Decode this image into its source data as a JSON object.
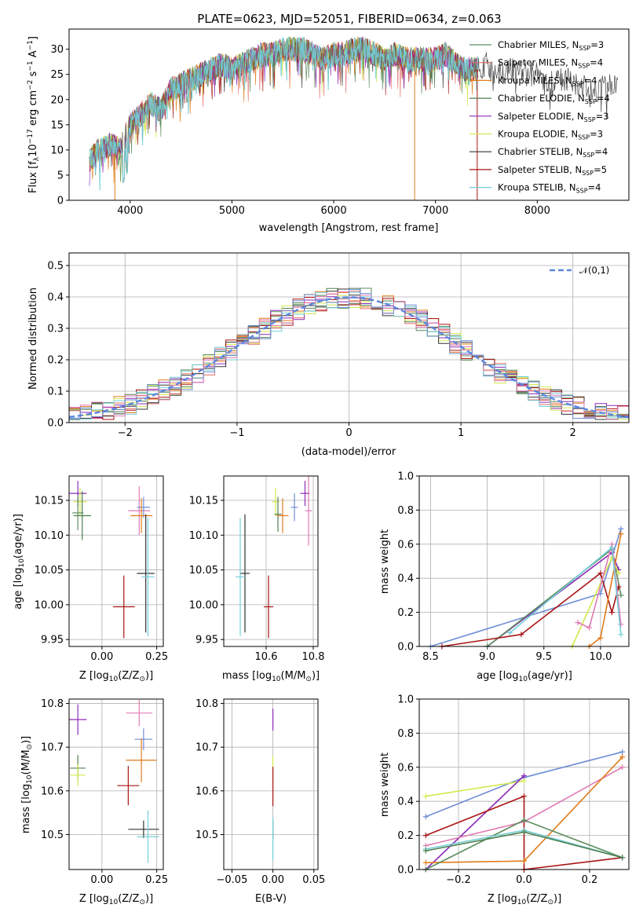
{
  "colors": {
    "chabrier_miles": "#5d8e5d",
    "salpeter_miles": "#e36f6a",
    "kroupa_miles": "#e07b1a",
    "chabrier_elodie": "#4f7f4f",
    "salpeter_elodie": "#8c2ab7",
    "kroupa_elodie": "#d3e84e",
    "chabrier_stelib": "#333333",
    "salpeter_stelib": "#a81414",
    "kroupa_stelib": "#74cfd8",
    "normal": "#5c86dc",
    "pink": "#e07ab3",
    "blue": "#6f8ed6"
  },
  "chart_data": [
    {
      "type": "line",
      "title": "PLATE=0623, MJD=52051, FIBERID=0634, z=0.063",
      "xlabel": "wavelength [Angstrom, rest frame]",
      "ylabel": "Flux [f_λ 10^-17 erg cm^-2 s^-1 A^-1]",
      "xlim": [
        3400,
        8900
      ],
      "ylim": [
        0,
        34
      ],
      "xticks": [
        "4000",
        "5000",
        "6000",
        "7000",
        "8000"
      ],
      "yticks": [
        "0",
        "5",
        "10",
        "15",
        "20",
        "25",
        "30"
      ],
      "legend_position": "top-right",
      "legend": [
        "Chabrier MILES, N_SSP=3",
        "Salpeter MILES, N_SSP=4",
        "Kroupa MILES, N_SSP=4",
        "Chabrier ELODIE, N_SSP=4",
        "Salpeter ELODIE, N_SSP=3",
        "Kroupa ELODIE, N_SSP=3",
        "Chabrier STELIB, N_SSP=4",
        "Salpeter STELIB, N_SSP=5",
        "Kroupa STELIB, N_SSP=4"
      ],
      "spectrum": {
        "x": [
          3600,
          3700,
          3800,
          3900,
          4000,
          4100,
          4200,
          4300,
          4400,
          4500,
          4600,
          4700,
          4800,
          4900,
          5000,
          5100,
          5200,
          5300,
          5400,
          5500,
          5600,
          5700,
          5800,
          5900,
          6000,
          6100,
          6200,
          6300,
          6400,
          6500,
          6600,
          6700,
          6800,
          6900,
          7000,
          7100,
          7200,
          7300,
          7400,
          7500,
          7600,
          7700,
          7800,
          7900,
          8000,
          8100,
          8200,
          8300,
          8400,
          8500,
          8600,
          8700,
          8800
        ],
        "y": [
          8,
          10,
          11,
          10,
          15,
          17,
          19,
          18,
          22,
          23,
          24,
          25,
          26,
          27,
          26,
          27,
          28,
          29,
          29,
          30,
          30,
          30,
          29,
          28,
          29,
          29,
          30,
          30,
          29,
          28,
          29,
          28,
          28,
          28,
          28,
          29,
          27,
          26,
          26,
          27,
          25,
          26,
          26,
          25,
          25,
          24,
          24,
          24,
          23,
          22,
          22,
          23,
          22
        ]
      }
    },
    {
      "type": "line",
      "xlabel": "(data-model)/error",
      "ylabel": "Normed distribution",
      "xlim": [
        -2.5,
        2.5
      ],
      "ylim": [
        0,
        0.54
      ],
      "xticks": [
        "−2",
        "−1",
        "0",
        "1",
        "2"
      ],
      "yticks": [
        "0.0",
        "0.1",
        "0.2",
        "0.3",
        "0.4",
        "0.5"
      ],
      "legend_position": "top-right",
      "legend": [
        "𝒩(0,1)"
      ],
      "bin_width": 0.1,
      "bin_start": -2.5
    },
    {
      "type": "scatter",
      "xlabel": "Z [log10(Z/Z⊙)]",
      "ylabel": "age  [log10(age/yr)]",
      "xlim": [
        -0.15,
        0.28
      ],
      "ylim": [
        9.94,
        10.185
      ],
      "xticks": [
        "0.00",
        "0.25"
      ],
      "xtick_values": [
        0.0,
        0.25
      ],
      "yticks": [
        "9.95",
        "10.00",
        "10.05",
        "10.10",
        "10.15"
      ],
      "ytick_values": [
        9.95,
        10.0,
        10.05,
        10.1,
        10.15
      ],
      "points": [
        {
          "x": -0.11,
          "y": 10.16,
          "xerr": 0.04,
          "yerr": 0.018,
          "c": "salpeter_elodie"
        },
        {
          "x": -0.1,
          "y": 10.148,
          "xerr": 0.03,
          "yerr": 0.02,
          "c": "kroupa_elodie"
        },
        {
          "x": -0.11,
          "y": 10.132,
          "xerr": 0.025,
          "yerr": 0.025,
          "c": "chabrier_miles"
        },
        {
          "x": -0.09,
          "y": 10.128,
          "xerr": 0.04,
          "yerr": 0.035,
          "c": "chabrier_elodie"
        },
        {
          "x": 0.17,
          "y": 10.135,
          "xerr": 0.05,
          "yerr": 0.035,
          "c": "pink"
        },
        {
          "x": 0.19,
          "y": 10.14,
          "xerr": 0.03,
          "yerr": 0.015,
          "c": "blue"
        },
        {
          "x": 0.18,
          "y": 10.128,
          "xerr": 0.05,
          "yerr": 0.025,
          "c": "kroupa_miles"
        },
        {
          "x": 0.2,
          "y": 10.045,
          "xerr": 0.04,
          "yerr": 0.085,
          "c": "chabrier_stelib"
        },
        {
          "x": 0.21,
          "y": 10.04,
          "xerr": 0.03,
          "yerr": 0.085,
          "c": "kroupa_stelib"
        },
        {
          "x": 0.1,
          "y": 9.997,
          "xerr": 0.05,
          "yerr": 0.045,
          "c": "salpeter_stelib"
        }
      ]
    },
    {
      "type": "scatter",
      "xlabel": "mass [log10(M/M⊙)]",
      "ylabel": "",
      "xlim": [
        10.42,
        10.82
      ],
      "ylim": [
        9.94,
        10.185
      ],
      "xticks": [
        "10.6",
        "10.8"
      ],
      "xtick_values": [
        10.6,
        10.8
      ],
      "yticks": [
        "9.95",
        "10.00",
        "10.05",
        "10.10",
        "10.15"
      ],
      "ytick_values": [
        9.95,
        10.0,
        10.05,
        10.1,
        10.15
      ],
      "points": [
        {
          "x": 10.765,
          "y": 10.16,
          "xerr": 0.02,
          "yerr": 0.018,
          "c": "salpeter_elodie"
        },
        {
          "x": 10.64,
          "y": 10.148,
          "xerr": 0.015,
          "yerr": 0.02,
          "c": "kroupa_elodie"
        },
        {
          "x": 10.65,
          "y": 10.13,
          "xerr": 0.015,
          "yerr": 0.025,
          "c": "chabrier_elodie"
        },
        {
          "x": 10.78,
          "y": 10.135,
          "xerr": 0.015,
          "yerr": 0.05,
          "c": "pink"
        },
        {
          "x": 10.72,
          "y": 10.14,
          "xerr": 0.015,
          "yerr": 0.02,
          "c": "blue"
        },
        {
          "x": 10.67,
          "y": 10.128,
          "xerr": 0.025,
          "yerr": 0.025,
          "c": "kroupa_miles"
        },
        {
          "x": 10.51,
          "y": 10.045,
          "xerr": 0.02,
          "yerr": 0.085,
          "c": "chabrier_stelib"
        },
        {
          "x": 10.49,
          "y": 10.04,
          "xerr": 0.02,
          "yerr": 0.085,
          "c": "kroupa_stelib"
        },
        {
          "x": 10.61,
          "y": 9.997,
          "xerr": 0.02,
          "yerr": 0.045,
          "c": "salpeter_stelib"
        }
      ]
    },
    {
      "type": "line",
      "xlabel": "age  [log10(age/yr)]",
      "ylabel": "mass weight",
      "xlim": [
        8.4,
        10.25
      ],
      "ylim": [
        0,
        1
      ],
      "xticks": [
        "8.5",
        "9.0",
        "9.5",
        "10.0"
      ],
      "xtick_values": [
        8.5,
        9.0,
        9.5,
        10.0
      ],
      "yticks": [
        "0.0",
        "0.2",
        "0.4",
        "0.6",
        "0.8",
        "1.0"
      ],
      "ytick_values": [
        0,
        0.2,
        0.4,
        0.6,
        0.8,
        1.0
      ],
      "series": [
        {
          "c": "blue",
          "x": [
            8.5,
            10.0,
            10.18
          ],
          "y": [
            0.0,
            0.31,
            0.69
          ]
        },
        {
          "c": "salpeter_elodie",
          "x": [
            9.0,
            10.1,
            10.16
          ],
          "y": [
            0.0,
            0.55,
            0.45
          ]
        },
        {
          "c": "chabrier_miles",
          "x": [
            9.0,
            10.1,
            10.18
          ],
          "y": [
            0.0,
            0.57,
            0.3
          ]
        },
        {
          "c": "salpeter_stelib",
          "x": [
            8.6,
            9.3,
            10.0,
            10.1,
            10.16
          ],
          "y": [
            0.0,
            0.07,
            0.43,
            0.2,
            0.35
          ]
        },
        {
          "c": "kroupa_elodie",
          "x": [
            9.75,
            10.1,
            10.16
          ],
          "y": [
            0.0,
            0.52,
            0.43
          ]
        },
        {
          "c": "kroupa_miles",
          "x": [
            9.9,
            10.0,
            10.18
          ],
          "y": [
            0.0,
            0.05,
            0.66
          ]
        },
        {
          "c": "pink",
          "x": [
            9.8,
            9.9,
            10.1,
            10.18
          ],
          "y": [
            0.14,
            0.11,
            0.6,
            0.13
          ]
        },
        {
          "c": "kroupa_stelib",
          "x": [
            9.2,
            10.1,
            10.18
          ],
          "y": [
            0.08,
            0.58,
            0.07
          ]
        }
      ]
    },
    {
      "type": "scatter",
      "xlabel": "Z [log10(Z/Z⊙)]",
      "ylabel": "mass [log10(M/M⊙)]",
      "xlim": [
        -0.15,
        0.28
      ],
      "ylim": [
        10.42,
        10.81
      ],
      "xticks": [
        "0.00",
        "0.25"
      ],
      "xtick_values": [
        0.0,
        0.25
      ],
      "yticks": [
        "10.5",
        "10.6",
        "10.7",
        "10.8"
      ],
      "ytick_values": [
        10.5,
        10.6,
        10.7,
        10.8
      ],
      "points": [
        {
          "x": -0.11,
          "y": 10.763,
          "xerr": 0.04,
          "yerr": 0.035,
          "c": "salpeter_elodie"
        },
        {
          "x": -0.11,
          "y": 10.652,
          "xerr": 0.035,
          "yerr": 0.03,
          "c": "chabrier_elodie"
        },
        {
          "x": -0.11,
          "y": 10.636,
          "xerr": 0.035,
          "yerr": 0.025,
          "c": "kroupa_elodie"
        },
        {
          "x": 0.17,
          "y": 10.778,
          "xerr": 0.06,
          "yerr": 0.03,
          "c": "pink"
        },
        {
          "x": 0.19,
          "y": 10.718,
          "xerr": 0.04,
          "yerr": 0.025,
          "c": "blue"
        },
        {
          "x": 0.18,
          "y": 10.67,
          "xerr": 0.07,
          "yerr": 0.05,
          "c": "kroupa_miles"
        },
        {
          "x": 0.12,
          "y": 10.612,
          "xerr": 0.05,
          "yerr": 0.045,
          "c": "salpeter_stelib"
        },
        {
          "x": 0.19,
          "y": 10.512,
          "xerr": 0.07,
          "yerr": 0.02,
          "c": "chabrier_stelib"
        },
        {
          "x": 0.21,
          "y": 10.495,
          "xerr": 0.05,
          "yerr": 0.06,
          "c": "kroupa_stelib"
        }
      ]
    },
    {
      "type": "scatter",
      "xlabel": "E(B-V)",
      "ylabel": "",
      "xlim": [
        -0.06,
        0.055
      ],
      "ylim": [
        10.42,
        10.81
      ],
      "xticks": [
        "−0.05",
        "0.00",
        "0.05"
      ],
      "xtick_values": [
        -0.05,
        0.0,
        0.05
      ],
      "yticks": [
        "10.5",
        "10.6",
        "10.7",
        "10.8"
      ],
      "ytick_values": [
        10.5,
        10.6,
        10.7,
        10.8
      ],
      "points": [
        {
          "x": 0.0,
          "y": 10.763,
          "xerr": 0,
          "yerr": 0.025,
          "c": "salpeter_elodie"
        },
        {
          "x": 0.0,
          "y": 10.65,
          "xerr": 0,
          "yerr": 0.03,
          "c": "kroupa_elodie"
        },
        {
          "x": 0.0,
          "y": 10.61,
          "xerr": 0,
          "yerr": 0.045,
          "c": "salpeter_stelib"
        },
        {
          "x": 0.0,
          "y": 10.51,
          "xerr": 0,
          "yerr": 0.02,
          "c": "chabrier_stelib"
        },
        {
          "x": 0.0,
          "y": 10.49,
          "xerr": 0,
          "yerr": 0.05,
          "c": "kroupa_stelib"
        }
      ]
    },
    {
      "type": "line",
      "xlabel": "Z [log10(Z/Z⊙)]",
      "ylabel": "mass weight",
      "xlim": [
        -0.32,
        0.32
      ],
      "ylim": [
        0,
        1
      ],
      "xticks": [
        "−0.2",
        "0.0",
        "0.2"
      ],
      "xtick_values": [
        -0.2,
        0.0,
        0.2
      ],
      "yticks": [
        "0.0",
        "0.2",
        "0.4",
        "0.6",
        "0.8",
        "1.0"
      ],
      "ytick_values": [
        0,
        0.2,
        0.4,
        0.6,
        0.8,
        1.0
      ],
      "series": [
        {
          "c": "blue",
          "x": [
            -0.3,
            0.0,
            0.3
          ],
          "y": [
            0.31,
            0.54,
            0.69
          ]
        },
        {
          "c": "kroupa_elodie",
          "x": [
            -0.3,
            0.0
          ],
          "y": [
            0.43,
            0.52
          ]
        },
        {
          "c": "salpeter_elodie",
          "x": [
            -0.3,
            0.0
          ],
          "y": [
            0.0,
            0.55
          ]
        },
        {
          "c": "pink",
          "x": [
            -0.3,
            0.0,
            0.3
          ],
          "y": [
            0.14,
            0.28,
            0.6
          ]
        },
        {
          "c": "salpeter_stelib",
          "x": [
            -0.3,
            0.0,
            0.0,
            0.3
          ],
          "y": [
            0.2,
            0.43,
            0.0,
            0.07
          ]
        },
        {
          "c": "kroupa_miles",
          "x": [
            -0.3,
            0.0,
            0.3
          ],
          "y": [
            0.04,
            0.05,
            0.66
          ]
        },
        {
          "c": "chabrier_miles",
          "x": [
            -0.3,
            0.0,
            0.3
          ],
          "y": [
            0.0,
            0.29,
            0.07
          ]
        },
        {
          "c": "kroupa_stelib",
          "x": [
            -0.3,
            0.0,
            0.3
          ],
          "y": [
            0.12,
            0.23,
            0.07
          ]
        },
        {
          "c": "chabrier_elodie",
          "x": [
            -0.3,
            0.0,
            0.3
          ],
          "y": [
            0.11,
            0.22,
            0.07
          ]
        }
      ]
    }
  ]
}
